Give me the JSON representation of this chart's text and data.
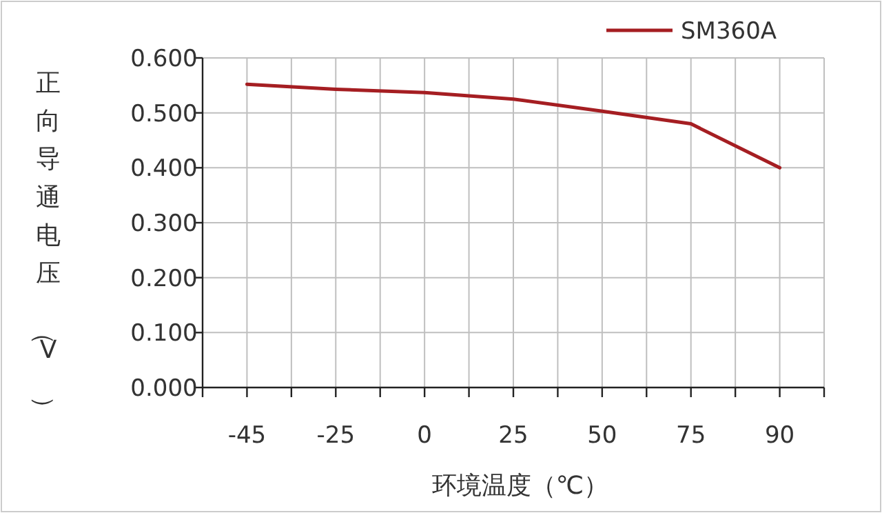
{
  "chart_data": {
    "type": "line",
    "xlabel": "环境温度（℃）",
    "ylabel": "正向导通电压（V）",
    "categories": [
      "-45",
      "-25",
      "0",
      "25",
      "50",
      "75",
      "90"
    ],
    "series": [
      {
        "name": "SM360A",
        "color": "#a51e22",
        "values": [
          0.552,
          0.543,
          0.537,
          0.525,
          0.503,
          0.48,
          0.4
        ]
      }
    ],
    "ylim": [
      0,
      0.6
    ],
    "yticks": [
      {
        "value": 0,
        "label": "0.000"
      },
      {
        "value": 0.1,
        "label": "0.100"
      },
      {
        "value": 0.2,
        "label": "0.200"
      },
      {
        "value": 0.3,
        "label": "0.300"
      },
      {
        "value": 0.4,
        "label": "0.400"
      },
      {
        "value": 0.5,
        "label": "0.500"
      },
      {
        "value": 0.6,
        "label": "0.600"
      }
    ],
    "grid": true,
    "legend": "top right",
    "marker": "none",
    "line_style": "solid"
  }
}
